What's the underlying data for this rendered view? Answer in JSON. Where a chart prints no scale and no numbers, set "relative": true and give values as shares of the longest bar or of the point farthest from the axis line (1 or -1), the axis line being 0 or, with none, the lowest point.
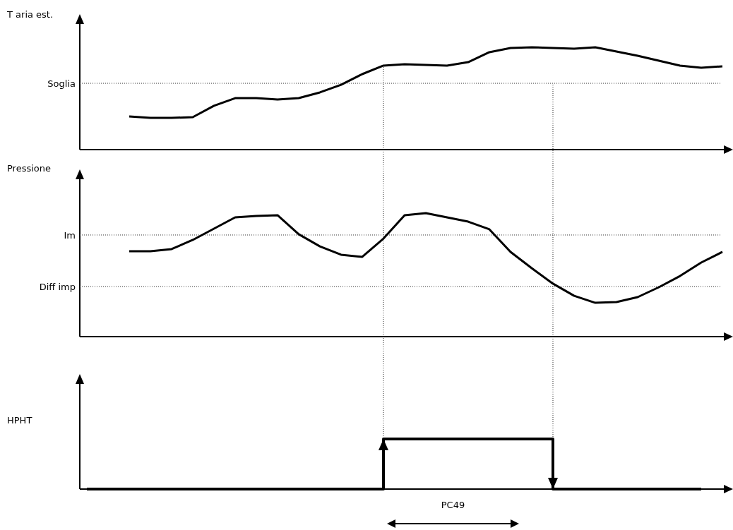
{
  "chart_data": [
    {
      "type": "line",
      "ylabel": "T aria est.",
      "relative": true,
      "color": "#000000",
      "categories": [
        null,
        null,
        null,
        null,
        null,
        null,
        null,
        null,
        null,
        null,
        null,
        null,
        null,
        null,
        null,
        null,
        null,
        null,
        null,
        null,
        null,
        null,
        null,
        null,
        null,
        null,
        null,
        null,
        null
      ],
      "values": [
        0.324,
        0.31,
        0.31,
        0.317,
        0.428,
        0.503,
        0.503,
        0.49,
        0.503,
        0.559,
        0.634,
        0.738,
        0.821,
        0.834,
        0.828,
        0.821,
        0.855,
        0.952,
        0.993,
        1,
        0.993,
        0.986,
        1,
        0.959,
        0.917,
        0.869,
        0.821,
        0.8,
        0.814
      ],
      "ref_lines": [
        {
          "axis": "y",
          "value": 0.648,
          "label": "Soglia"
        }
      ]
    },
    {
      "type": "line",
      "ylabel": "Pressione",
      "relative": true,
      "color": "#000000",
      "categories": [
        null,
        null,
        null,
        null,
        null,
        null,
        null,
        null,
        null,
        null,
        null,
        null,
        null,
        null,
        null,
        null,
        null,
        null,
        null,
        null,
        null,
        null,
        null,
        null,
        null,
        null,
        null,
        null,
        null
      ],
      "values": [
        0.691,
        0.691,
        0.709,
        0.783,
        0.874,
        0.966,
        0.977,
        0.983,
        0.829,
        0.731,
        0.663,
        0.646,
        0.794,
        0.983,
        1,
        0.966,
        0.931,
        0.869,
        0.686,
        0.554,
        0.429,
        0.331,
        0.274,
        0.28,
        0.32,
        0.4,
        0.491,
        0.6,
        0.686
      ],
      "ref_lines": [
        {
          "axis": "y",
          "value": 0.823,
          "label": "Im"
        },
        {
          "axis": "y",
          "value": 0.406,
          "label": "Diff imp"
        }
      ]
    },
    {
      "type": "step",
      "ylabel": "HPHT",
      "relative": true,
      "color": "#000000",
      "categories": [
        null,
        null,
        null,
        null,
        null,
        null,
        null,
        null,
        null,
        null,
        null,
        null,
        null,
        null,
        null,
        null,
        null,
        null,
        null,
        null,
        null,
        null,
        null,
        null,
        null,
        null,
        null,
        null,
        null,
        null
      ],
      "values": [
        0,
        0,
        0,
        0,
        0,
        0,
        0,
        0,
        0,
        0,
        0,
        0,
        0,
        0,
        1,
        1,
        1,
        1,
        1,
        1,
        1,
        1,
        0,
        0,
        0,
        0,
        0,
        0,
        0,
        0
      ],
      "annotations": [
        "PC49"
      ]
    }
  ]
}
